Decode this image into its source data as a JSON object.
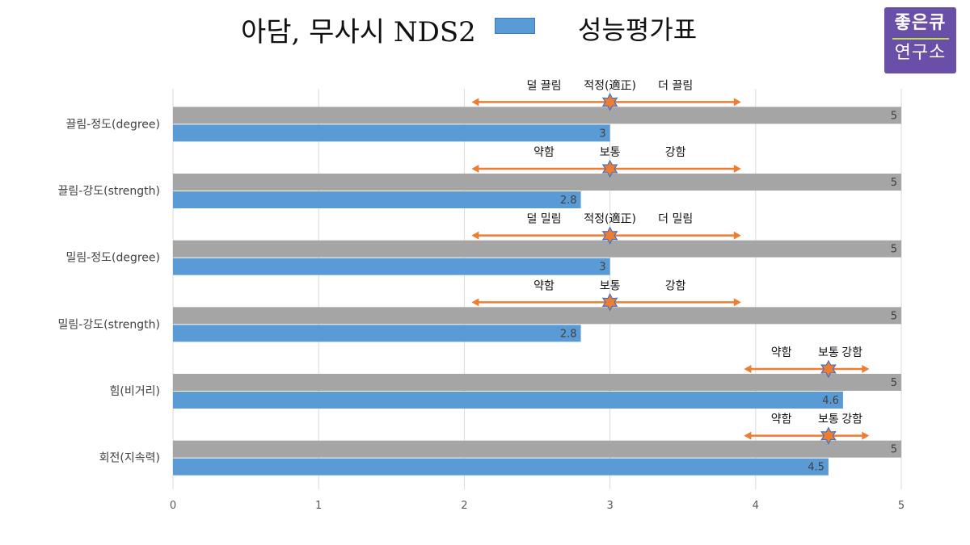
{
  "header": {
    "title_left": "아담, 무사시 NDS2",
    "title_right": "성능평가표",
    "logo_line1": "좋은큐",
    "logo_line2": "연구소"
  },
  "colors": {
    "gray_bar": "#a5a5a5",
    "blue_bar": "#5b9bd5",
    "arrow": "#ed7d31",
    "star_fill": "#ed7d31",
    "star_stroke": "#4472c4",
    "grid": "#d9d9d9",
    "logo_bg": "#6a4fa8"
  },
  "chart_data": {
    "type": "bar",
    "orientation": "horizontal",
    "xlim": [
      0,
      5
    ],
    "x_ticks": [
      "0",
      "1",
      "2",
      "3",
      "4",
      "5"
    ],
    "grid": true,
    "categories": [
      "끌림-정도(degree)",
      "끌림-강도(strength)",
      "밀림-정도(degree)",
      "밀림-강도(strength)",
      "힘(비거리)",
      "회전(지속력)"
    ],
    "series": [
      {
        "color": "#a5a5a5",
        "values": [
          5,
          5,
          5,
          5,
          5,
          5
        ],
        "labels": [
          "5",
          "5",
          "5",
          "5",
          "5",
          "5"
        ]
      },
      {
        "color": "#5b9bd5",
        "values": [
          3,
          2.8,
          3,
          2.8,
          4.6,
          4.5
        ],
        "labels": [
          "3",
          "2.8",
          "3",
          "2.8",
          "4.6",
          "4.5"
        ]
      }
    ],
    "annotations": [
      {
        "left_label": "덜 끌림",
        "center_label": "적정(適正)",
        "right_label": "더 끌림",
        "center_value": 3,
        "arrow_from": 2.05,
        "arrow_to": 3.9
      },
      {
        "left_label": "약함",
        "center_label": "보통",
        "right_label": "강함",
        "center_value": 3,
        "arrow_from": 2.05,
        "arrow_to": 3.9
      },
      {
        "left_label": "덜 밀림",
        "center_label": "적정(適正)",
        "right_label": "더 밀림",
        "center_value": 3,
        "arrow_from": 2.05,
        "arrow_to": 3.9
      },
      {
        "left_label": "약함",
        "center_label": "보통",
        "right_label": "강함",
        "center_value": 3,
        "arrow_from": 2.05,
        "arrow_to": 3.9
      },
      {
        "left_label": "약함",
        "center_label": "보통",
        "right_label": "강함",
        "center_value": 4.5,
        "arrow_from": 3.92,
        "arrow_to": 4.78
      },
      {
        "left_label": "약함",
        "center_label": "보통",
        "right_label": "강함",
        "center_value": 4.5,
        "arrow_from": 3.92,
        "arrow_to": 4.78
      }
    ]
  }
}
